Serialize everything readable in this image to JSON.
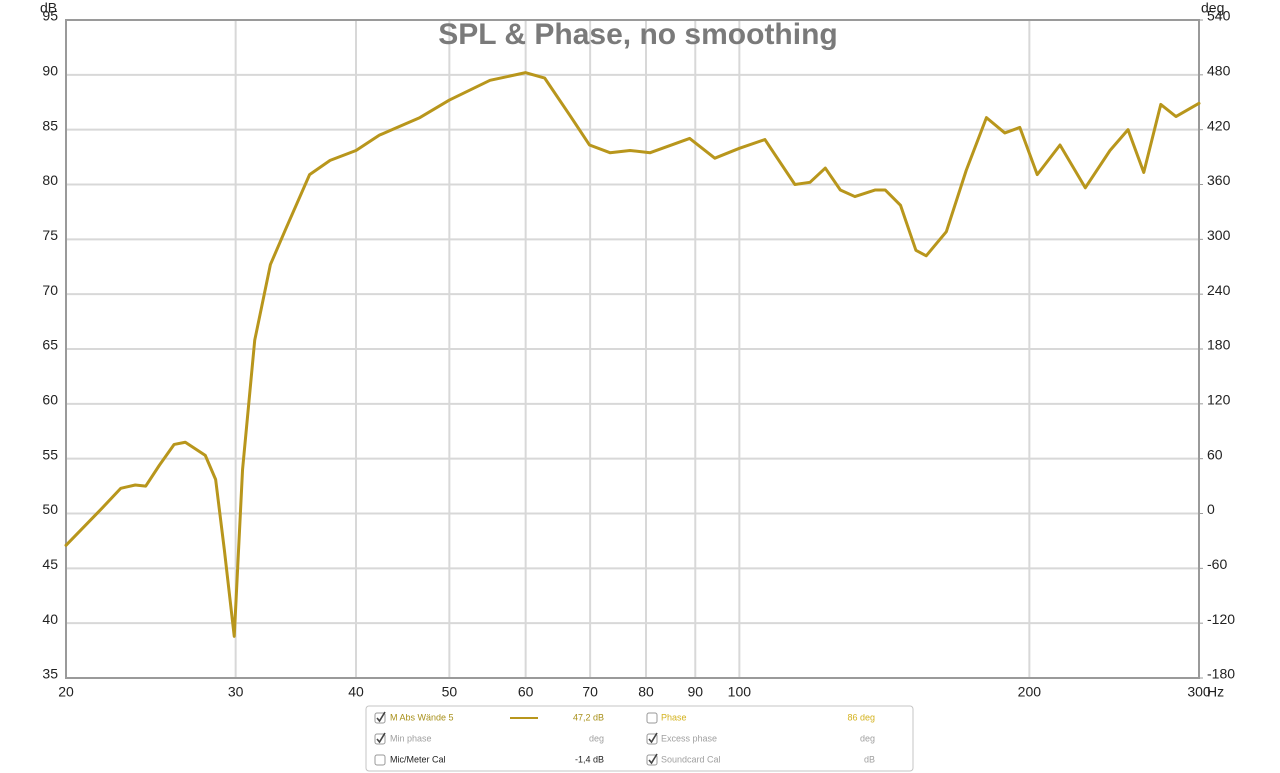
{
  "chart_data": {
    "type": "line",
    "title": "SPL & Phase, no smoothing",
    "y_label": "dB",
    "y2_label": "deg",
    "x_label": "Hz",
    "x_scale": "log",
    "grid": true,
    "x": [
      20,
      21.7,
      22.8,
      23.6,
      24.2,
      25.0,
      25.9,
      26.6,
      27.9,
      28.6,
      29.2,
      29.9,
      30.5,
      31.4,
      32.6,
      33.8,
      35.8,
      37.6,
      40,
      42.3,
      46.6,
      50,
      55.1,
      60,
      62.8,
      66.7,
      69.9,
      73.4,
      77.0,
      80.8,
      88.8,
      94.3,
      100,
      106.3,
      114.2,
      118.4,
      122.8,
      127.3,
      131.8,
      138.4,
      141.7,
      147,
      152.5,
      156.3,
      164,
      172,
      180.5,
      188.6,
      195.5,
      203.8,
      215.2,
      228.6,
      242.5,
      253.2,
      262.9,
      273.8,
      283.9,
      300
    ],
    "series": [
      {
        "name": "M Abs Wände 5",
        "color": "#b8961c",
        "checked": true,
        "readout": "47,2 dB",
        "values": [
          47.1,
          50.3,
          52.3,
          52.6,
          52.5,
          54.4,
          56.3,
          56.5,
          55.3,
          53.1,
          46.7,
          38.8,
          54.0,
          65.8,
          72.7,
          75.9,
          80.9,
          82.2,
          83.1,
          84.5,
          86.1,
          87.7,
          89.5,
          90.2,
          89.7,
          86.3,
          83.6,
          82.9,
          83.1,
          82.9,
          84.2,
          82.4,
          83.3,
          84.1,
          80.0,
          80.2,
          81.5,
          79.5,
          78.9,
          79.5,
          79.5,
          78.1,
          74.0,
          73.5,
          75.7,
          81.3,
          86.1,
          84.7,
          85.2,
          80.9,
          83.6,
          79.7,
          83.1,
          85.0,
          81.1,
          87.3,
          86.2,
          87.4
        ]
      }
    ],
    "xlim": [
      20,
      300
    ],
    "xticks": [
      20,
      30,
      40,
      50,
      60,
      70,
      80,
      90,
      100,
      200,
      300
    ],
    "ylim": [
      35,
      95
    ],
    "yticks": [
      35,
      40,
      45,
      50,
      55,
      60,
      65,
      70,
      75,
      80,
      85,
      90,
      95
    ],
    "y2lim": [
      -180,
      540
    ],
    "y2ticks": [
      -180,
      -120,
      -60,
      0,
      60,
      120,
      180,
      240,
      300,
      360,
      420,
      480,
      540
    ]
  },
  "legend_panel": {
    "items": [
      {
        "label": "Phase",
        "value": "86 deg",
        "checked": false
      },
      {
        "label": "Min phase",
        "value": "deg",
        "checked": true
      },
      {
        "label": "Excess phase",
        "value": "deg",
        "checked": true
      },
      {
        "label": "Mic/Meter Cal",
        "value": "-1,4 dB",
        "checked": false
      },
      {
        "label": "Soundcard Cal",
        "value": "dB",
        "checked": true
      }
    ]
  }
}
